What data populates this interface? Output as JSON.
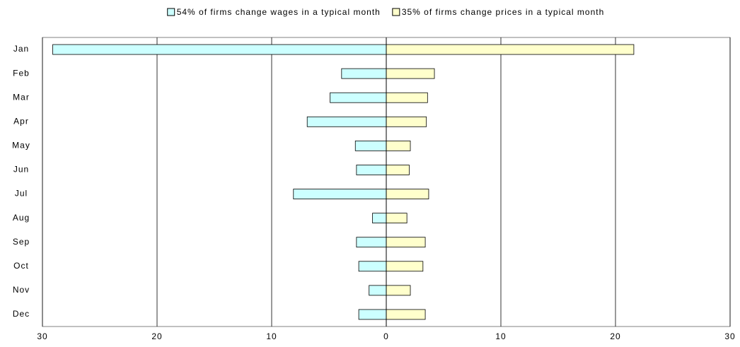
{
  "chart_data": {
    "type": "bar",
    "orientation": "horizontal",
    "categories": [
      "Jan",
      "Feb",
      "Mar",
      "Apr",
      "May",
      "Jun",
      "Jul",
      "Aug",
      "Sep",
      "Oct",
      "Nov",
      "Dec"
    ],
    "series": [
      {
        "name": "54% of firms change wages in a typical month",
        "color": "#ccffff",
        "values": [
          -29.1,
          -3.9,
          -4.9,
          -6.9,
          -2.7,
          -2.6,
          -8.1,
          -1.2,
          -2.6,
          -2.4,
          -1.5,
          -2.4
        ]
      },
      {
        "name": "35% of firms change prices in a typical month",
        "color": "#ffffcc",
        "values": [
          21.6,
          4.2,
          3.6,
          3.5,
          2.1,
          2.0,
          3.7,
          1.8,
          3.4,
          3.2,
          2.1,
          3.4
        ]
      }
    ],
    "xlim": [
      -30,
      30
    ],
    "xticks": [
      {
        "value": -30,
        "label": "30"
      },
      {
        "value": -20,
        "label": "20"
      },
      {
        "value": -10,
        "label": "10"
      },
      0,
      10,
      20,
      30
    ],
    "grid": true,
    "legend": "top"
  }
}
